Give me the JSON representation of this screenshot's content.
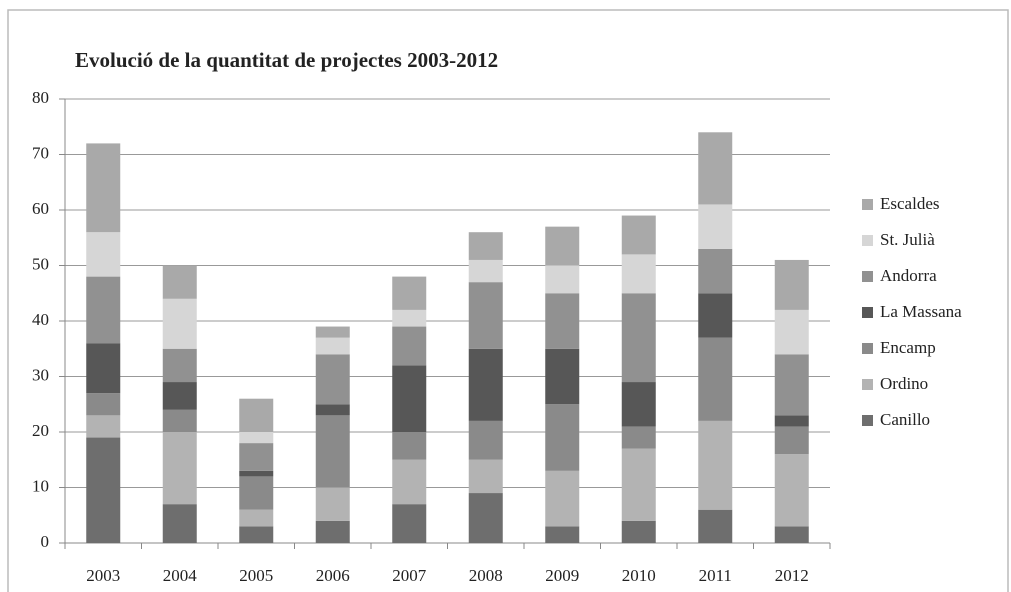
{
  "chart_data": {
    "type": "stacked_bar",
    "title": "Evolució de la quantitat de projectes 2003-2012",
    "categories": [
      "2003",
      "2004",
      "2005",
      "2006",
      "2007",
      "2008",
      "2009",
      "2010",
      "2011",
      "2012"
    ],
    "series": [
      {
        "name": "Canillo",
        "color": "#6e6e6e",
        "values": [
          19,
          7,
          3,
          4,
          7,
          9,
          3,
          4,
          6,
          3
        ]
      },
      {
        "name": "Ordino",
        "color": "#b3b3b3",
        "values": [
          4,
          13,
          3,
          6,
          8,
          6,
          10,
          13,
          16,
          13
        ]
      },
      {
        "name": "Encamp",
        "color": "#8a8a8a",
        "values": [
          4,
          4,
          6,
          13,
          5,
          7,
          12,
          4,
          15,
          5
        ]
      },
      {
        "name": "La Massana",
        "color": "#575757",
        "values": [
          9,
          5,
          1,
          2,
          12,
          13,
          10,
          8,
          8,
          2
        ]
      },
      {
        "name": "Andorra",
        "color": "#919191",
        "values": [
          12,
          6,
          5,
          9,
          7,
          12,
          10,
          16,
          8,
          11
        ]
      },
      {
        "name": "St. Julià",
        "color": "#d6d6d6",
        "values": [
          8,
          9,
          2,
          3,
          3,
          4,
          5,
          7,
          8,
          8
        ]
      },
      {
        "name": "Escaldes",
        "color": "#a9a9a9",
        "values": [
          16,
          6,
          6,
          2,
          6,
          5,
          7,
          7,
          13,
          9
        ]
      }
    ],
    "ylim": [
      0,
      80
    ],
    "yticks": [
      0,
      10,
      20,
      30,
      40,
      50,
      60,
      70,
      80
    ],
    "grid": true,
    "legend": "right"
  }
}
